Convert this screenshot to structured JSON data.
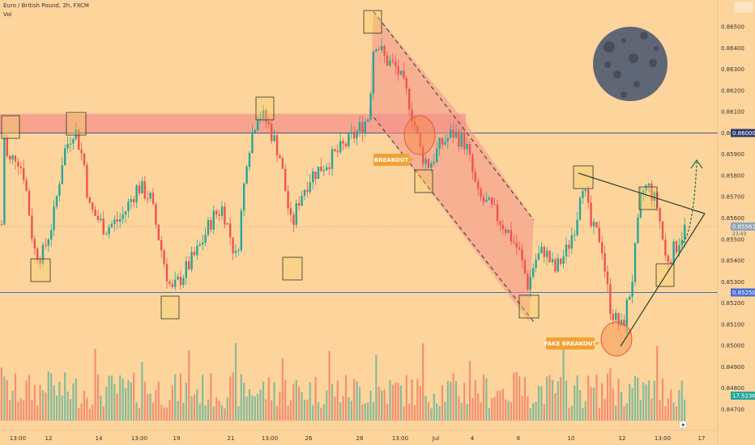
{
  "header": {
    "title": "Euro / British Pound, 2h, FXCM",
    "volume_label": "Vol"
  },
  "colors": {
    "background": "#fdd59c",
    "bull": "#26a69a",
    "bear": "#ef5350",
    "zone": "#f4918a",
    "support_line": "#3f5aa0",
    "triangle": "#2f5a37"
  },
  "annotations": {
    "breakout": "BREAKOUT",
    "fake_breakout": "FAKE BREAKOUT"
  },
  "chart_data": {
    "type": "candlestick",
    "title": "Euro / British Pound, 2h, FXCM",
    "x_ticks": [
      "13:00",
      "12",
      "14",
      "13:00",
      "19",
      "21",
      "13:00",
      "26",
      "28",
      "13:00",
      "Jul",
      "4",
      "6",
      "10",
      "12",
      "13:00",
      "17"
    ],
    "y_ticks": [
      "0.86500",
      "0.86400",
      "0.86300",
      "0.86200",
      "0.86100",
      "0.86000",
      "0.85900",
      "0.85800",
      "0.85700",
      "0.85600",
      "0.85500",
      "0.85400",
      "0.85300",
      "0.85200",
      "0.85100",
      "0.85000",
      "0.84900",
      "0.84800",
      "0.84700"
    ],
    "ylim": [
      0.8465,
      0.8656
    ],
    "price_labels": {
      "resistance": "0.86000",
      "current": "0.85561",
      "countdown": "23:43",
      "support": "0.85250",
      "volume": "17.523K"
    },
    "levels": {
      "resistance": 0.86,
      "support": 0.8525,
      "zone": [
        0.86,
        0.8609
      ],
      "current": 0.8556
    },
    "volume_series_label": "Vol"
  }
}
